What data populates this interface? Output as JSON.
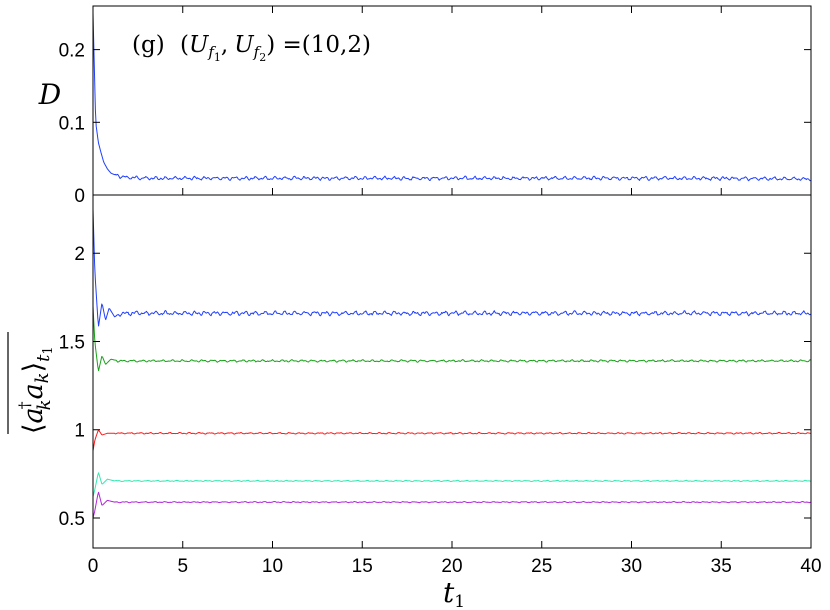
{
  "chart_data": [
    {
      "panel": "top",
      "type": "line",
      "annotation": {
        "label": "(g)",
        "pair_open": "(",
        "u": "U",
        "sub_f": "f",
        "sub1": "1",
        "sub2": "2",
        "comma": ",",
        "pair_close": ")",
        "equals": " =",
        "value": "(10,2)"
      },
      "ylabel": "D",
      "xlim": [
        0,
        40
      ],
      "ylim": [
        0,
        0.26
      ],
      "yticks": [
        0,
        0.1,
        0.2
      ],
      "ytick_labels": [
        "0",
        "0.1",
        "0.2"
      ],
      "series": [
        {
          "color": "#1f3fff",
          "x": [
            0,
            0.05,
            0.15,
            0.3,
            0.45,
            0.6,
            0.8,
            1.0,
            1.3,
            1.6,
            2,
            3,
            5,
            10,
            15,
            20,
            25,
            30,
            35,
            40
          ],
          "y": [
            0.25,
            0.2,
            0.1,
            0.072,
            0.058,
            0.045,
            0.036,
            0.03,
            0.027,
            0.025,
            0.024,
            0.023,
            0.023,
            0.023,
            0.023,
            0.023,
            0.023,
            0.023,
            0.023,
            0.022
          ],
          "noise": 0.0025
        }
      ]
    },
    {
      "panel": "bottom",
      "type": "line",
      "ylabel": "⟨a_k† a_k⟩_t1",
      "ylabel_parts": {
        "open": "⟨",
        "a": "a",
        "k": "k",
        "dagger": "†",
        "close": "⟩",
        "t": "t",
        "one": "1"
      },
      "xlabel": "t",
      "xlabel_sub": "1",
      "xlim": [
        0,
        40
      ],
      "ylim": [
        0.33,
        2.33
      ],
      "xticks": [
        0,
        5,
        10,
        15,
        20,
        25,
        30,
        35,
        40
      ],
      "xtick_labels": [
        "0",
        "5",
        "10",
        "15",
        "20",
        "25",
        "30",
        "35",
        "40"
      ],
      "yticks": [
        0.5,
        1,
        1.5,
        2
      ],
      "ytick_labels": [
        "0.5",
        "1",
        "1.5",
        "2"
      ],
      "series": [
        {
          "color": "#1f3fff",
          "x": [
            0,
            0.1,
            0.3,
            0.5,
            0.7,
            0.9,
            1.2,
            1.6,
            2,
            5,
            40
          ],
          "y": [
            2.25,
            1.9,
            1.58,
            1.72,
            1.62,
            1.69,
            1.64,
            1.66,
            1.66,
            1.66,
            1.66
          ],
          "noise": 0.012
        },
        {
          "color": "#17a317",
          "x": [
            0,
            0.1,
            0.3,
            0.5,
            0.7,
            1.0,
            1.4,
            2,
            5,
            40
          ],
          "y": [
            1.7,
            1.5,
            1.33,
            1.42,
            1.37,
            1.4,
            1.39,
            1.39,
            1.39,
            1.39
          ],
          "noise": 0.006
        },
        {
          "color": "#ff1a1a",
          "x": [
            0,
            0.1,
            0.3,
            0.5,
            0.8,
            1.2,
            2,
            5,
            40
          ],
          "y": [
            0.88,
            0.94,
            1.0,
            0.97,
            0.98,
            0.98,
            0.98,
            0.98,
            0.98
          ],
          "noise": 0.004
        },
        {
          "color": "#33e8b0",
          "x": [
            0,
            0.1,
            0.3,
            0.5,
            0.8,
            1.2,
            2,
            5,
            40
          ],
          "y": [
            0.62,
            0.66,
            0.76,
            0.69,
            0.72,
            0.71,
            0.71,
            0.71,
            0.71
          ],
          "noise": 0.003
        },
        {
          "color": "#b026d9",
          "x": [
            0,
            0.1,
            0.3,
            0.5,
            0.8,
            1.2,
            2,
            5,
            40
          ],
          "y": [
            0.5,
            0.54,
            0.65,
            0.57,
            0.6,
            0.59,
            0.59,
            0.59,
            0.59
          ],
          "noise": 0.003
        }
      ]
    }
  ]
}
